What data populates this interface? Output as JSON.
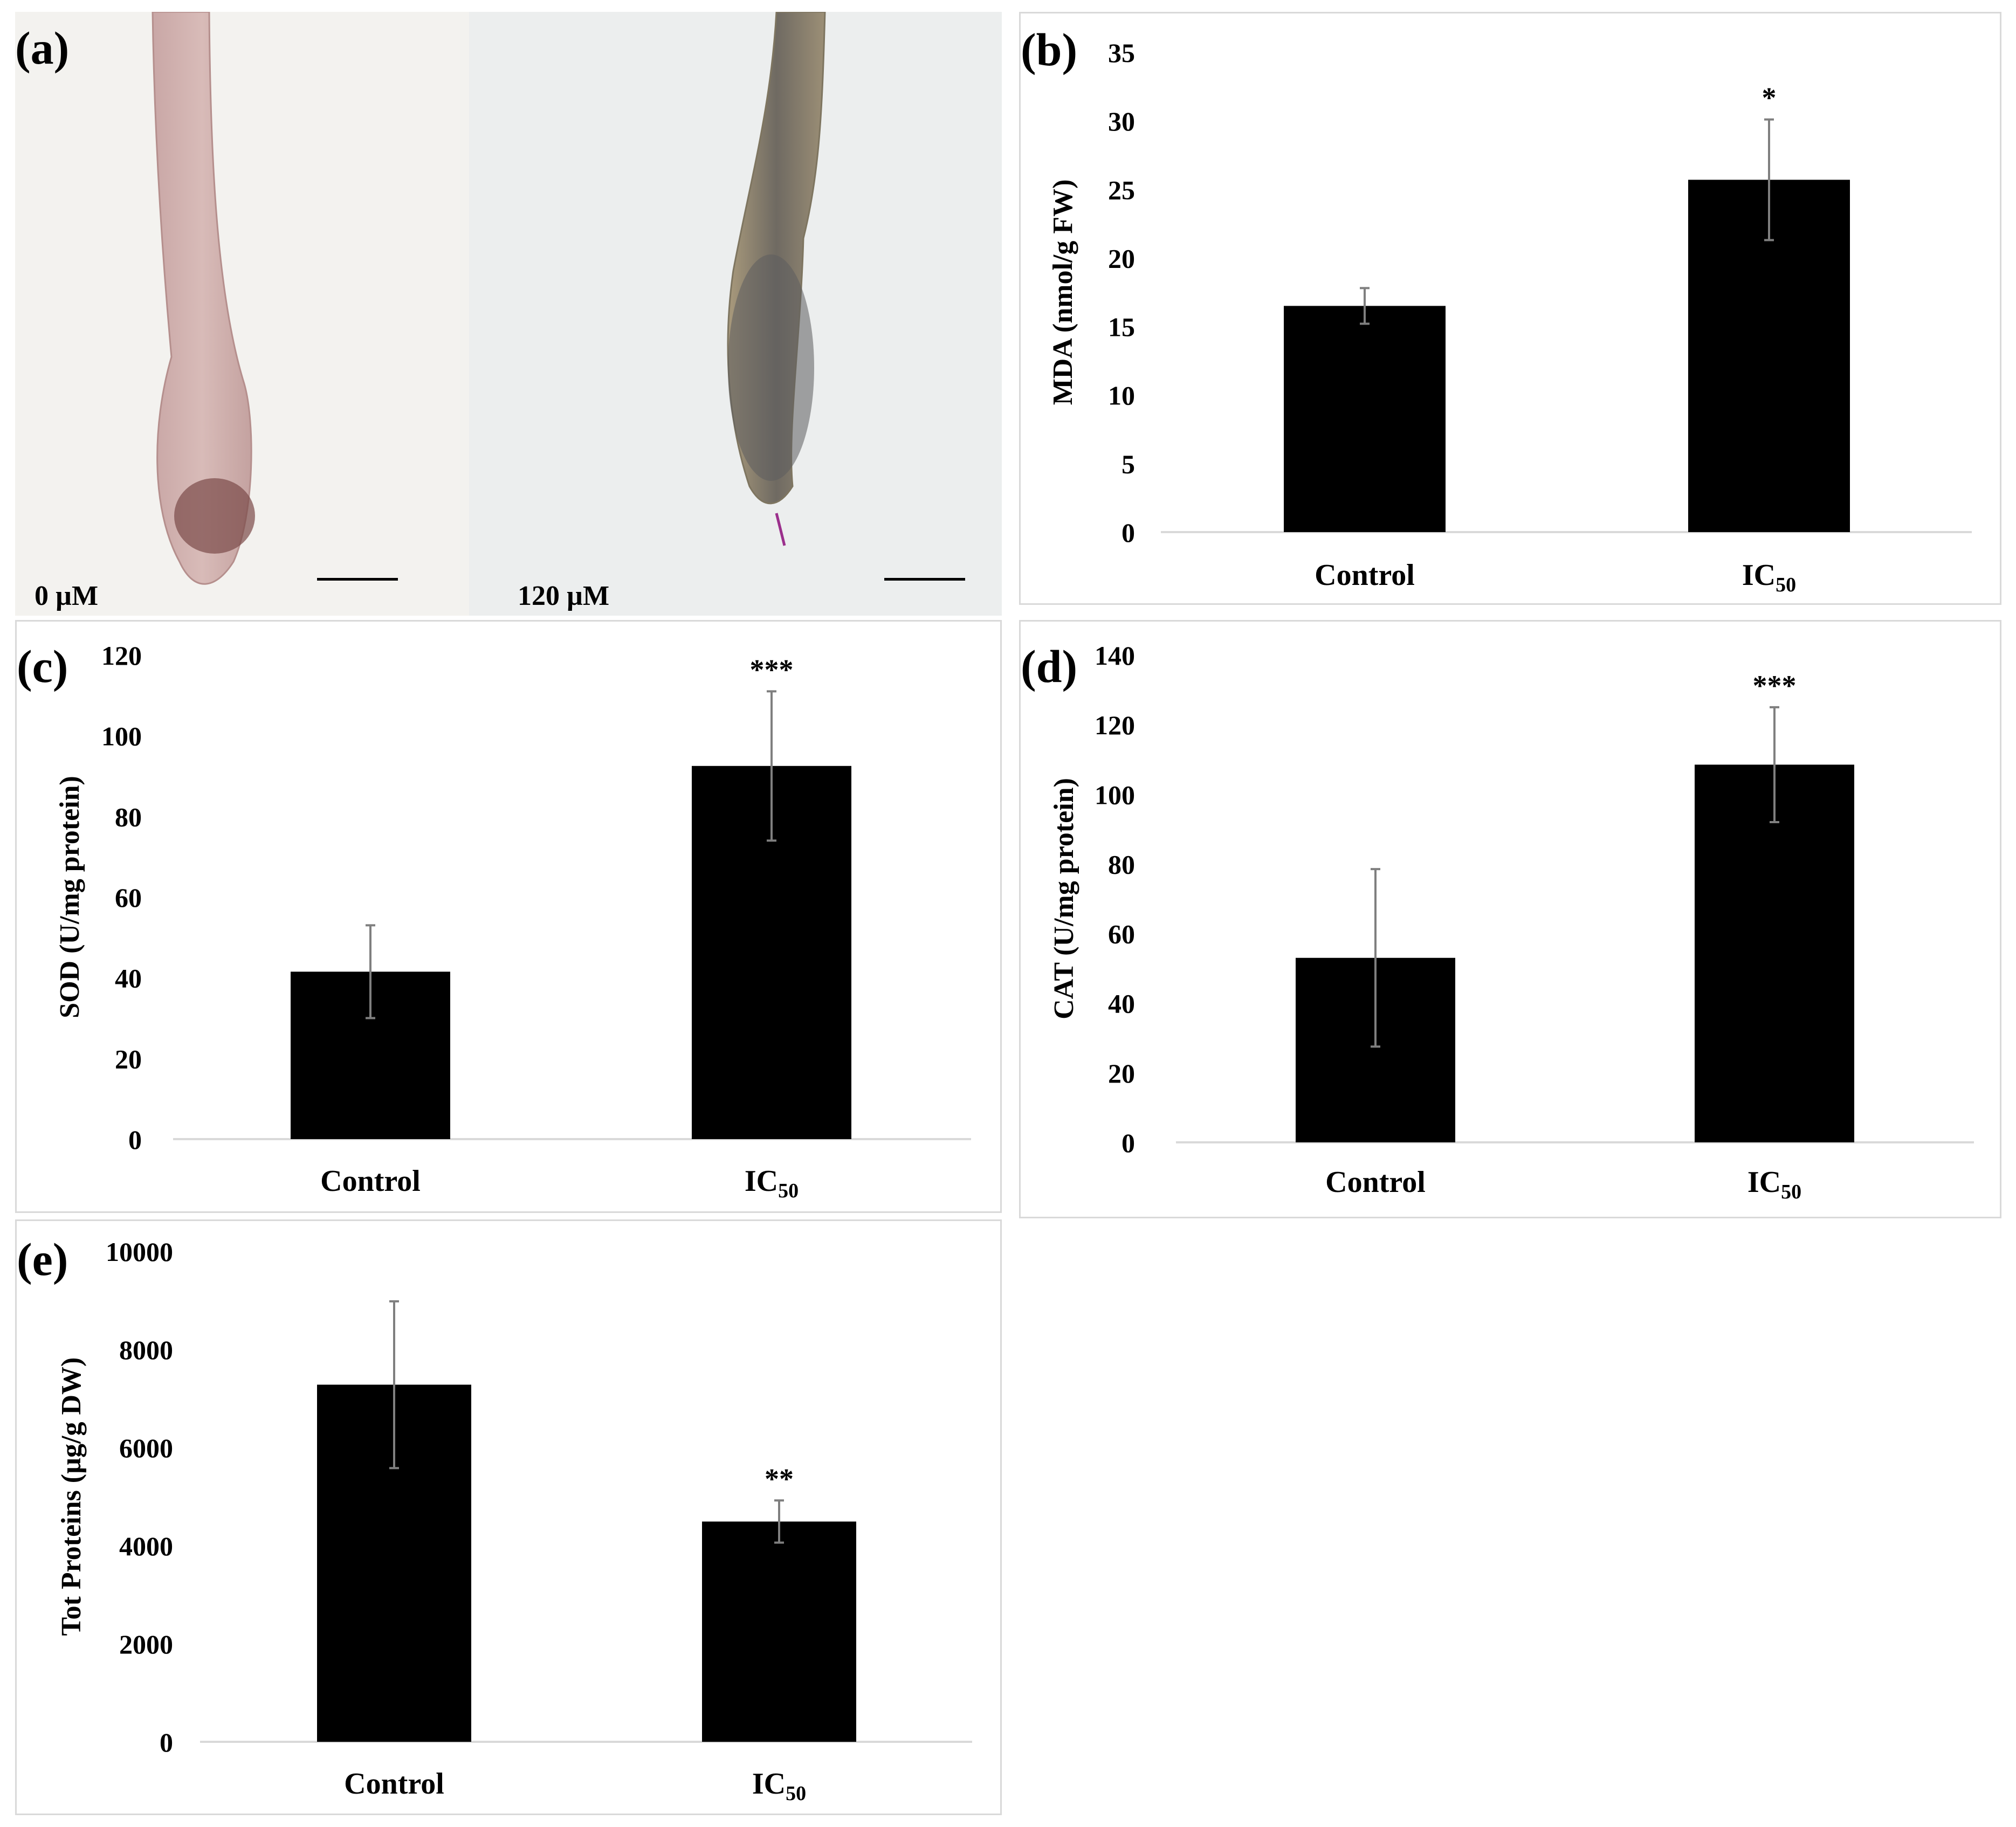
{
  "figure": {
    "panel_a": {
      "label": "(a)",
      "images": [
        {
          "caption": "0 µM"
        },
        {
          "caption": "120 µM"
        }
      ]
    }
  },
  "chart_data": [
    {
      "id": "b",
      "label": "(b)",
      "type": "bar",
      "categories": [
        "Control",
        "IC50"
      ],
      "values": [
        16.5,
        25.7
      ],
      "errors": [
        1.3,
        4.4
      ],
      "significance": [
        "",
        "*"
      ],
      "ylabel": "MDA (nmol/g FW)",
      "ylim": [
        0,
        35
      ],
      "yticks": [
        0,
        5,
        10,
        15,
        20,
        25,
        30,
        35
      ]
    },
    {
      "id": "c",
      "label": "(c)",
      "type": "bar",
      "categories": [
        "Control",
        "IC50"
      ],
      "values": [
        41.5,
        92.5
      ],
      "errors": [
        11.5,
        18.5
      ],
      "significance": [
        "",
        "***"
      ],
      "ylabel": "SOD (U/mg protein)",
      "ylim": [
        0,
        120
      ],
      "yticks": [
        0,
        20,
        40,
        60,
        80,
        100,
        120
      ]
    },
    {
      "id": "d",
      "label": "(d)",
      "type": "bar",
      "categories": [
        "Control",
        "IC50"
      ],
      "values": [
        53,
        108.5
      ],
      "errors": [
        25.5,
        16.5
      ],
      "significance": [
        "",
        "***"
      ],
      "ylabel": "CAT (U/mg protein)",
      "ylim": [
        0,
        140
      ],
      "yticks": [
        0,
        20,
        40,
        60,
        80,
        100,
        120,
        140
      ]
    },
    {
      "id": "e",
      "label": "(e)",
      "type": "bar",
      "categories": [
        "Control",
        "IC50"
      ],
      "values": [
        7280,
        4490
      ],
      "errors": [
        1700,
        430
      ],
      "significance": [
        "",
        "**"
      ],
      "ylabel": "Tot Proteins (µg/g DW)",
      "ylim": [
        0,
        10000
      ],
      "yticks": [
        0,
        2000,
        4000,
        6000,
        8000,
        10000
      ]
    }
  ]
}
